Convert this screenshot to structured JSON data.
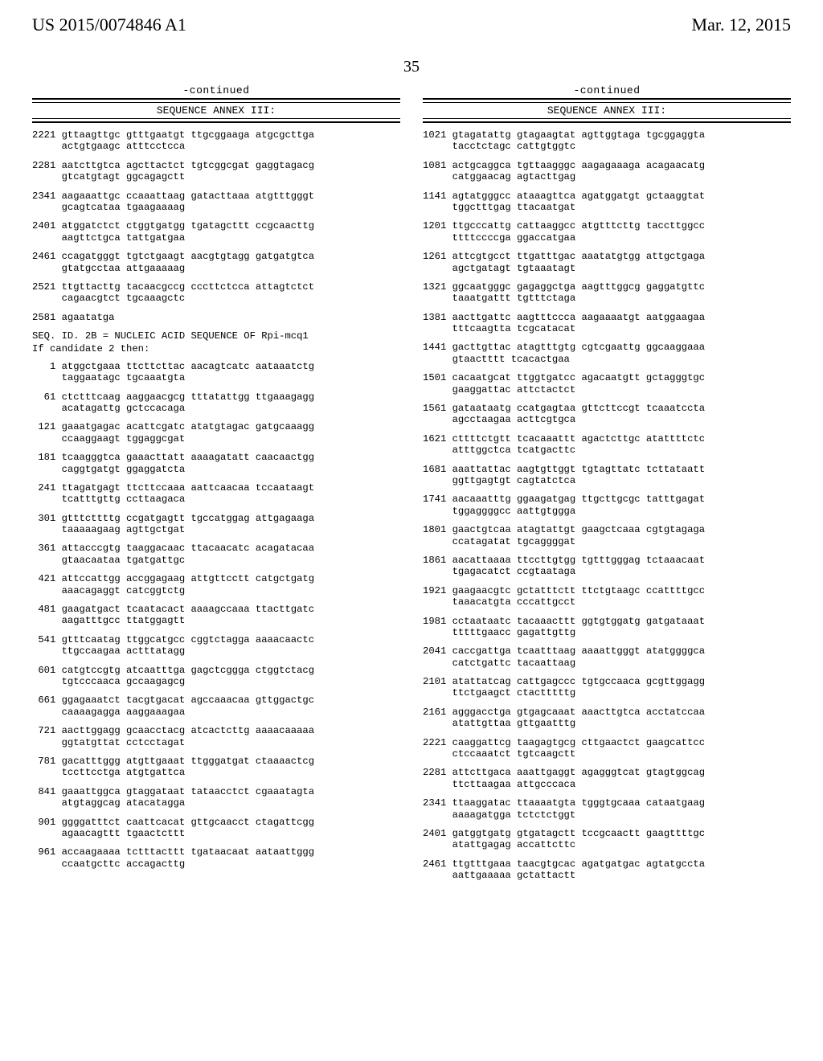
{
  "header": {
    "left": "US 2015/0074846 A1",
    "right": "Mar. 12, 2015"
  },
  "page_number": "35",
  "continued_label": "-continued",
  "annex_label": "SEQUENCE ANNEX III:",
  "left_column": {
    "header_lines": [
      "SEQ. ID. 2B = NUCLEIC ACID SEQUENCE OF Rpi-mcq1",
      "If candidate 2 then:"
    ],
    "pre_blocks": [
      "2221 gttaagttgc gtttgaatgt ttgcggaaga atgcgcttga\n     actgtgaagc atttcctcca",
      "2281 aatcttgtca agcttactct tgtcggcgat gaggtagacg\n     gtcatgtagt ggcagagctt",
      "2341 aagaaattgc ccaaattaag gatacttaaa atgtttgggt\n     gcagtcataa tgaagaaaag",
      "2401 atggatctct ctggtgatgg tgatagcttt ccgcaacttg\n     aagttctgca tattgatgaa",
      "2461 ccagatgggt tgtctgaagt aacgtgtagg gatgatgtca\n     gtatgcctaa attgaaaaag",
      "2521 ttgttacttg tacaacgccg cccttctcca attagtctct\n     cagaacgtct tgcaaagctc",
      "2581 agaatatga"
    ],
    "post_blocks": [
      "   1 atggctgaaa ttcttcttac aacagtcatc aataaatctg\n     taggaatagc tgcaaatgta",
      "  61 ctctttcaag aaggaacgcg tttatattgg ttgaaagagg\n     acatagattg gctccacaga",
      " 121 gaaatgagac acattcgatc atatgtagac gatgcaaagg\n     ccaaggaagt tggaggcgat",
      " 181 tcaagggtca gaaacttatt aaaagatatt caacaactgg\n     caggtgatgt ggaggatcta",
      " 241 ttagatgagt ttcttccaaa aattcaacaa tccaataagt\n     tcatttgttg ccttaagaca",
      " 301 gtttcttttg ccgatgagtt tgccatggag attgagaaga\n     taaaaagaag agttgctgat",
      " 361 attacccgtg taaggacaac ttacaacatc acagatacaa\n     gtaacaataa tgatgattgc",
      " 421 attccattgg accggagaag attgttcctt catgctgatg\n     aaacagaggt catcggtctg",
      " 481 gaagatgact tcaatacact aaaagccaaa ttacttgatc\n     aagatttgcc ttatggagtt",
      " 541 gtttcaatag ttggcatgcc cggtctagga aaaacaactc\n     ttgccaagaa actttatagg",
      " 601 catgtccgtg atcaatttga gagctcggga ctggtctacg\n     tgtcccaaca gccaagagcg",
      " 661 ggagaaatct tacgtgacat agccaaacaa gttggactgc\n     caaaagagga aaggaaagaa",
      " 721 aacttggagg gcaacctacg atcactcttg aaaacaaaaa\n     ggtatgttat cctcctagat",
      " 781 gacatttggg atgttgaaat ttgggatgat ctaaaactcg\n     tccttcctga atgtgattca",
      " 841 gaaattggca gtaggataat tataacctct cgaaatagta\n     atgtaggcag atacatagga",
      " 901 ggggatttct caattcacat gttgcaacct ctagattcgg\n     agaacagttt tgaactcttt",
      " 961 accaagaaaa tctttacttt tgataacaat aataattggg\n     ccaatgcttc accagacttg"
    ]
  },
  "right_column": {
    "blocks": [
      "1021 gtagatattg gtagaagtat agttggtaga tgcggaggta\n     tacctctagc cattgtggtc",
      "1081 actgcaggca tgttaagggc aagagaaaga acagaacatg\n     catggaacag agtacttgag",
      "1141 agtatgggcc ataaagttca agatggatgt gctaaggtat\n     tggctttgag ttacaatgat",
      "1201 ttgcccattg cattaaggcc atgtttcttg taccttggcc\n     ttttccccga ggaccatgaa",
      "1261 attcgtgcct ttgatttgac aaatatgtgg attgctgaga\n     agctgatagt tgtaaatagt",
      "1321 ggcaatgggc gagaggctga aagtttggcg gaggatgttc\n     taaatgattt tgtttctaga",
      "1381 aacttgattc aagtttccca aagaaaatgt aatggaagaa\n     tttcaagtta tcgcatacat",
      "1441 gacttgttac atagtttgtg cgtcgaattg ggcaaggaaa\n     gtaactttt tcacactgaa",
      "1501 cacaatgcat ttggtgatcc agacaatgtt gctagggtgc\n     gaaggattac attctactct",
      "1561 gataataatg ccatgagtaa gttcttccgt tcaaatccta\n     agcctaagaa acttcgtgca",
      "1621 cttttctgtt tcacaaattt agactcttgc atattttctc\n     atttggctca tcatgacttc",
      "1681 aaattattac aagtgttggt tgtagttatc tcttataatt\n     ggttgagtgt cagtatctca",
      "1741 aacaaatttg ggaagatgag ttgcttgcgc tatttgagat\n     tggaggggcc aattgtggga",
      "1801 gaactgtcaa atagtattgt gaagctcaaa cgtgtagaga\n     ccatagatat tgcaggggat",
      "1861 aacattaaaa ttccttgtgg tgtttgggag tctaaacaat\n     tgagacatct ccgtaataga",
      "1921 gaagaacgtc gctatttctt ttctgtaagc ccattttgcc\n     taaacatgta cccattgcct",
      "1981 cctaataatc tacaaacttt ggtgtggatg gatgataaat\n     tttttgaacc gagattgttg",
      "2041 caccgattga tcaatttaag aaaattgggt atatggggca\n     catctgattc tacaattaag",
      "2101 atattatcag cattgagccc tgtgccaaca gcgttggagg\n     ttctgaagct ctactttttg",
      "2161 agggacctga gtgagcaaat aaacttgtca acctatccaa\n     atattgttaa gttgaatttg",
      "2221 caaggattcg taagagtgcg cttgaactct gaagcattcc\n     ctccaaatct tgtcaagctt",
      "2281 attcttgaca aaattgaggt agagggtcat gtagtggcag\n     ttcttaagaa attgcccaca",
      "2341 ttaaggatac ttaaaatgta tgggtgcaaa cataatgaag\n     aaaagatgga tctctctggt",
      "2401 gatggtgatg gtgatagctt tccgcaactt gaagttttgc\n     atattgagag accattcttc",
      "2461 ttgtttgaaa taacgtgcac agatgatgac agtatgccta\n     aattgaaaaa gctattactt"
    ]
  }
}
